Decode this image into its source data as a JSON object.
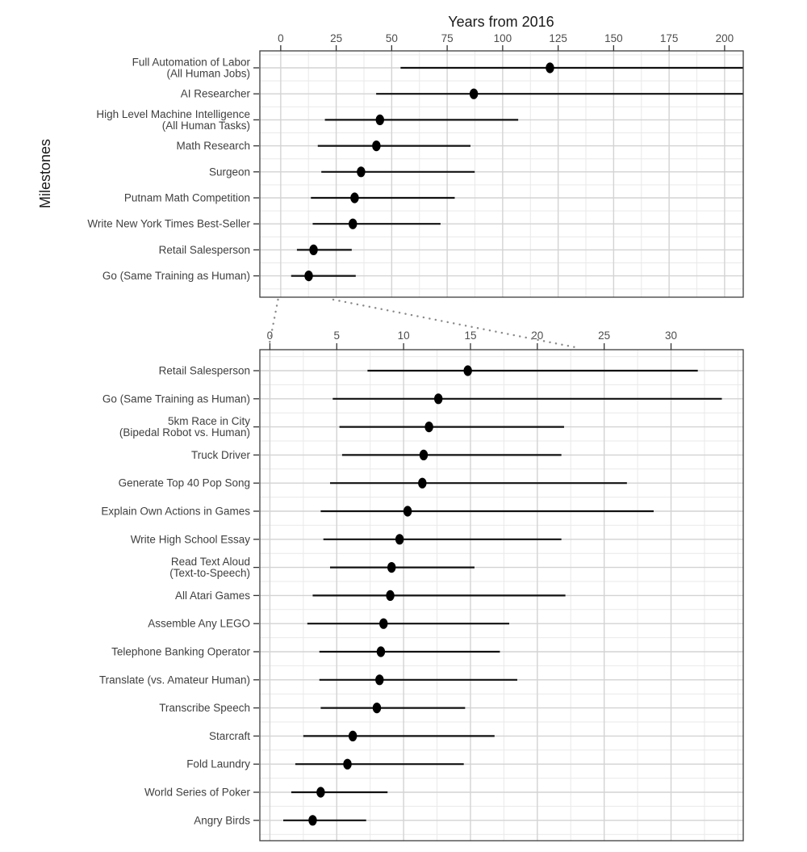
{
  "x_axis": {
    "title": "Years from 2016"
  },
  "y_axis": {
    "title": "Milestones"
  },
  "chart_data": [
    {
      "type": "dot_interval",
      "panel": "overview",
      "xlabel": "Years from 2016",
      "ylabel": "Milestones",
      "x_ticks": [
        0,
        25,
        50,
        75,
        100,
        125,
        150,
        175,
        200
      ],
      "x_minor_gridlines": [
        12.5,
        37.5,
        62.5,
        87.5,
        112.5,
        137.5,
        162.5,
        187.5
      ],
      "xlim": [
        -9.4,
        208.4
      ],
      "grid": true,
      "legend": "none",
      "rows": [
        {
          "label": [
            "Full Automation of Labor",
            "(All Human Jobs)"
          ],
          "low": 54,
          "median": 121.3,
          "high": 210,
          "high_clipped": true
        },
        {
          "label": [
            "AI Researcher"
          ],
          "low": 43,
          "median": 87,
          "high": 210,
          "high_clipped": true
        },
        {
          "label": [
            "High Level Machine Intelligence",
            "(All Human Tasks)"
          ],
          "low": 19.9,
          "median": 44.7,
          "high": 107
        },
        {
          "label": [
            "Math Research"
          ],
          "low": 16.7,
          "median": 43.1,
          "high": 85.5
        },
        {
          "label": [
            "Surgeon"
          ],
          "low": 18.3,
          "median": 36.2,
          "high": 87.4
        },
        {
          "label": [
            "Putnam Math Competition"
          ],
          "low": 13.6,
          "median": 33.3,
          "high": 78.4
        },
        {
          "label": [
            "Write New York Times Best-Seller"
          ],
          "low": 14.4,
          "median": 32.5,
          "high": 72
        },
        {
          "label": [
            "Retail Salesperson"
          ],
          "low": 7.3,
          "median": 14.8,
          "high": 32
        },
        {
          "label": [
            "Go (Same Training as Human)"
          ],
          "low": 4.7,
          "median": 12.6,
          "high": 33.8
        }
      ]
    },
    {
      "type": "dot_interval",
      "panel": "zoom-detail",
      "xlabel": "",
      "ylabel": "",
      "x_ticks": [
        0,
        5,
        10,
        15,
        20,
        25,
        30
      ],
      "x_minor_gridlines": [
        2.5,
        7.5,
        12.5,
        17.5,
        22.5,
        27.5,
        32.5,
        35
      ],
      "xlim": [
        -0.75,
        35.4
      ],
      "grid": true,
      "legend": "none",
      "rows": [
        {
          "label": [
            "Retail Salesperson"
          ],
          "low": 7.3,
          "median": 14.8,
          "high": 32
        },
        {
          "label": [
            "Go (Same Training as Human)"
          ],
          "low": 4.7,
          "median": 12.6,
          "high": 33.8
        },
        {
          "label": [
            "5km Race in City",
            "(Bipedal Robot vs. Human)"
          ],
          "low": 5.2,
          "median": 11.9,
          "high": 22
        },
        {
          "label": [
            "Truck Driver"
          ],
          "low": 5.4,
          "median": 11.5,
          "high": 21.8
        },
        {
          "label": [
            "Generate Top 40 Pop Song"
          ],
          "low": 4.5,
          "median": 11.4,
          "high": 26.7
        },
        {
          "label": [
            "Explain Own Actions in Games"
          ],
          "low": 3.8,
          "median": 10.3,
          "high": 28.7
        },
        {
          "label": [
            "Write High School Essay"
          ],
          "low": 4.0,
          "median": 9.7,
          "high": 21.8
        },
        {
          "label": [
            "Read Text Aloud",
            "(Text-to-Speech)"
          ],
          "low": 4.5,
          "median": 9.1,
          "high": 15.3
        },
        {
          "label": [
            "All Atari Games"
          ],
          "low": 3.2,
          "median": 9.0,
          "high": 22.1
        },
        {
          "label": [
            "Assemble Any LEGO"
          ],
          "low": 2.8,
          "median": 8.5,
          "high": 17.9
        },
        {
          "label": [
            "Telephone Banking Operator"
          ],
          "low": 3.7,
          "median": 8.3,
          "high": 17.2
        },
        {
          "label": [
            "Translate (vs. Amateur Human)"
          ],
          "low": 3.7,
          "median": 8.2,
          "high": 18.5
        },
        {
          "label": [
            "Transcribe Speech"
          ],
          "low": 3.8,
          "median": 8.0,
          "high": 14.6
        },
        {
          "label": [
            "Starcraft"
          ],
          "low": 2.5,
          "median": 6.2,
          "high": 16.8
        },
        {
          "label": [
            "Fold Laundry"
          ],
          "low": 1.9,
          "median": 5.8,
          "high": 14.5
        },
        {
          "label": [
            "World Series of Poker"
          ],
          "low": 1.6,
          "median": 3.8,
          "high": 8.8
        },
        {
          "label": [
            "Angry Birds"
          ],
          "low": 1.0,
          "median": 3.2,
          "high": 7.2
        }
      ]
    }
  ],
  "colors": {
    "background": "#ffffff",
    "point": "#000000",
    "interval_line": "#111111",
    "grid_major": "#d3d3d3",
    "grid_minor": "#e9e9e9",
    "panel_border": "#3d3d3d",
    "tick_mark": "#333333",
    "tick_label": "#4d4d4d",
    "category_label": "#404040",
    "axis_title": "#1a1a1a",
    "connector": "#8a8a8a"
  },
  "annotations": {
    "zoom_connector_style": "dotted"
  }
}
